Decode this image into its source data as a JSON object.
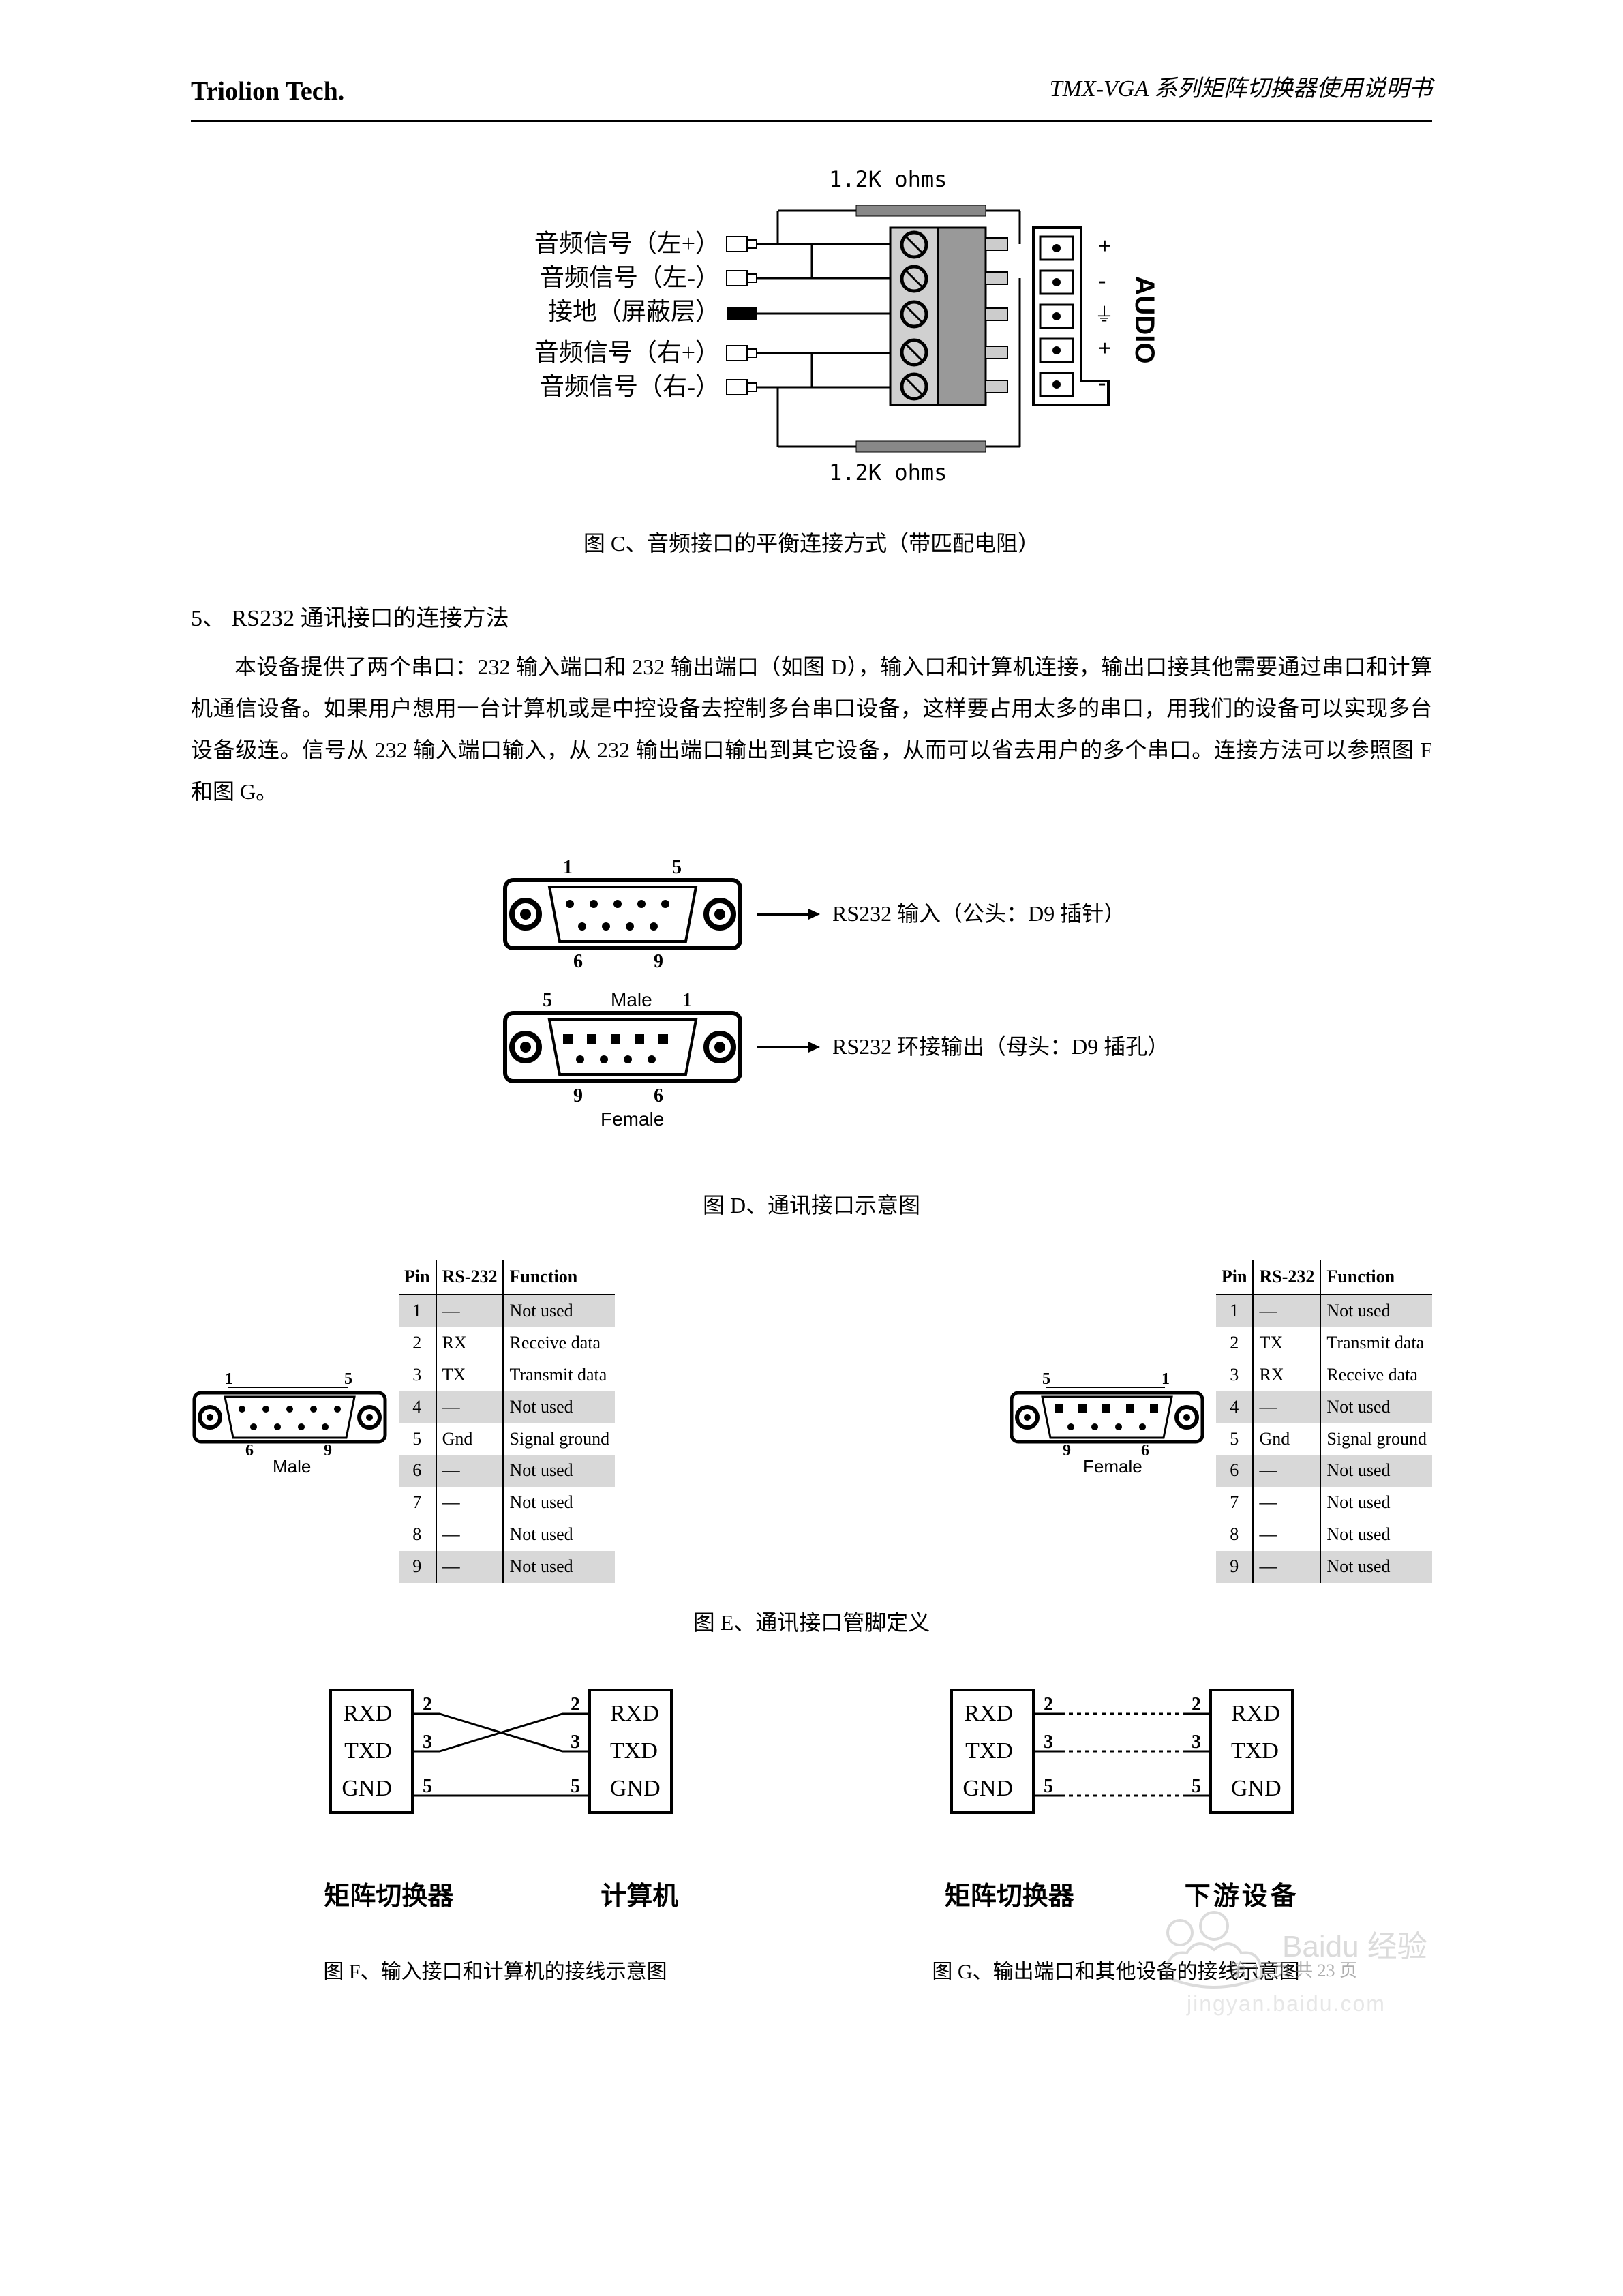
{
  "header": {
    "left": "Triolion Tech.",
    "right": "TMX-VGA 系列矩阵切换器使用说明书"
  },
  "figC": {
    "top_ohms": "1.2K ohms",
    "bottom_ohms": "1.2K ohms",
    "signals": [
      "音频信号（左+）",
      "音频信号（左-）",
      "接地（屏蔽层）",
      "音频信号（右+）",
      "音频信号（右-）"
    ],
    "audio_label": "AUDIO",
    "pins": [
      "+",
      "-",
      "⏚",
      "+",
      "-"
    ],
    "caption": "图 C、音频接口的平衡连接方式（带匹配电阻）",
    "sig_color": "#000000",
    "accent": "#666666"
  },
  "section5": {
    "title": "5、 RS232 通讯接口的连接方法",
    "body": "本设备提供了两个串口：232 输入端口和 232 输出端口（如图 D），输入口和计算机连接，输出口接其他需要通过串口和计算机通信设备。如果用户想用一台计算机或是中控设备去控制多台串口设备，这样要占用太多的串口，用我们的设备可以实现多台设备级连。信号从 232 输入端口输入，从 232 输出端口输出到其它设备，从而可以省去用户的多个串口。连接方法可以参照图 F 和图 G。"
  },
  "figD": {
    "male_label": "Male",
    "female_label": "Female",
    "top_nums": [
      "1",
      "5",
      "6",
      "9"
    ],
    "bot_nums": [
      "5",
      "1",
      "9",
      "6"
    ],
    "arrow1_text": "RS232 输入（公头：D9 插针）",
    "arrow2_text": "RS232 环接输出（母头：D9 插孔）",
    "caption": "图 D、通讯接口示意图"
  },
  "figE": {
    "caption": "图 E、通讯接口管脚定义",
    "headers": [
      "Pin",
      "RS-232",
      "Function"
    ],
    "male_rows": [
      {
        "pin": "1",
        "rs": "—",
        "fn": "Not used",
        "shade": true
      },
      {
        "pin": "2",
        "rs": "RX",
        "fn": "Receive data",
        "shade": false
      },
      {
        "pin": "3",
        "rs": "TX",
        "fn": "Transmit data",
        "shade": false
      },
      {
        "pin": "4",
        "rs": "—",
        "fn": "Not used",
        "shade": true
      },
      {
        "pin": "5",
        "rs": "Gnd",
        "fn": "Signal ground",
        "shade": false
      },
      {
        "pin": "6",
        "rs": "—",
        "fn": "Not used",
        "shade": true
      },
      {
        "pin": "7",
        "rs": "—",
        "fn": "Not used",
        "shade": false
      },
      {
        "pin": "8",
        "rs": "—",
        "fn": "Not used",
        "shade": false
      },
      {
        "pin": "9",
        "rs": "—",
        "fn": "Not used",
        "shade": true
      }
    ],
    "female_rows": [
      {
        "pin": "1",
        "rs": "—",
        "fn": "Not used",
        "shade": true
      },
      {
        "pin": "2",
        "rs": "TX",
        "fn": "Transmit data",
        "shade": false
      },
      {
        "pin": "3",
        "rs": "RX",
        "fn": "Receive data",
        "shade": false
      },
      {
        "pin": "4",
        "rs": "—",
        "fn": "Not used",
        "shade": true
      },
      {
        "pin": "5",
        "rs": "Gnd",
        "fn": "Signal ground",
        "shade": false
      },
      {
        "pin": "6",
        "rs": "—",
        "fn": "Not used",
        "shade": true
      },
      {
        "pin": "7",
        "rs": "—",
        "fn": "Not used",
        "shade": false
      },
      {
        "pin": "8",
        "rs": "—",
        "fn": "Not used",
        "shade": false
      },
      {
        "pin": "9",
        "rs": "—",
        "fn": "Not used",
        "shade": true
      }
    ],
    "diag_nums_male": [
      "1",
      "5",
      "6",
      "9"
    ],
    "diag_nums_female": [
      "5",
      "1",
      "9",
      "6"
    ],
    "male_label": "Male",
    "female_label": "Female"
  },
  "figFG": {
    "sig_labels": [
      "RXD",
      "TXD",
      "GND"
    ],
    "pins": [
      "2",
      "3",
      "5"
    ],
    "f_left": "矩阵切换器",
    "f_right": "计算机",
    "g_left": "矩阵切换器",
    "g_right": "下游设备",
    "caption_f": "图 F、输入接口和计算机的接线示意图",
    "caption_g": "图 G、输出端口和其他设备的接线示意图"
  },
  "footer": {
    "page": "第 11 页 共 23 页",
    "wm1": "Baidu 经验",
    "wm2": "jingyan.baidu.com"
  }
}
